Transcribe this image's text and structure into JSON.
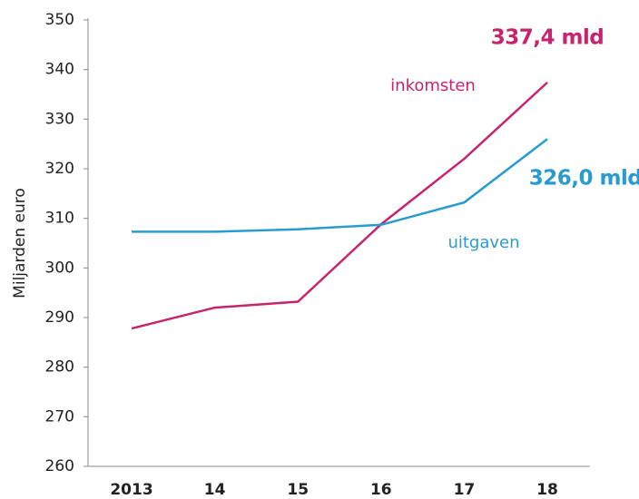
{
  "chart_data": {
    "type": "line",
    "y_label": "Miljarden euro",
    "categories": [
      "2013",
      "14",
      "15",
      "16",
      "17",
      "18"
    ],
    "series": [
      {
        "name": "inkomsten",
        "color": "#c8246e",
        "values": [
          287.8,
          292.0,
          293.2,
          308.8,
          322.0,
          337.4
        ]
      },
      {
        "name": "uitgaven",
        "color": "#2a9bd0",
        "values": [
          307.3,
          307.3,
          307.8,
          308.7,
          313.2,
          326.0
        ]
      }
    ],
    "annotations": [
      "337,4 mld",
      "326,0 mld"
    ],
    "ylim": [
      260,
      350
    ],
    "yticks": [
      260,
      270,
      280,
      290,
      300,
      310,
      320,
      330,
      340,
      350
    ]
  }
}
